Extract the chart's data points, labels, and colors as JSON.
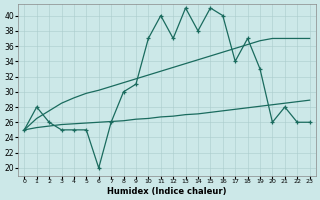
{
  "x": [
    0,
    1,
    2,
    3,
    4,
    5,
    6,
    7,
    8,
    9,
    10,
    11,
    12,
    13,
    14,
    15,
    16,
    17,
    18,
    19,
    20,
    21,
    22,
    23
  ],
  "jagged": [
    25,
    28,
    26,
    25,
    25,
    25,
    20,
    26,
    30,
    31,
    37,
    40,
    37,
    41,
    38,
    41,
    40,
    34,
    37,
    33,
    26,
    28,
    26,
    26
  ],
  "smooth_upper": [
    25.0,
    26.5,
    27.5,
    28.5,
    29.2,
    29.8,
    30.2,
    30.7,
    31.2,
    31.7,
    32.2,
    32.7,
    33.2,
    33.7,
    34.2,
    34.7,
    35.2,
    35.7,
    36.2,
    36.7,
    37.0,
    37.0,
    37.0,
    37.0
  ],
  "smooth_lower": [
    25.0,
    25.3,
    25.5,
    25.7,
    25.8,
    25.9,
    26.0,
    26.1,
    26.2,
    26.4,
    26.5,
    26.7,
    26.8,
    27.0,
    27.1,
    27.3,
    27.5,
    27.7,
    27.9,
    28.1,
    28.3,
    28.5,
    28.7,
    28.9
  ],
  "bg_color": "#cce8e8",
  "line_color": "#1a6b5e",
  "grid_color": "#aacccc",
  "xlabel": "Humidex (Indice chaleur)",
  "yticks": [
    20,
    22,
    24,
    26,
    28,
    30,
    32,
    34,
    36,
    38,
    40
  ],
  "ylim": [
    19.0,
    41.5
  ],
  "xlim": [
    -0.5,
    23.5
  ]
}
